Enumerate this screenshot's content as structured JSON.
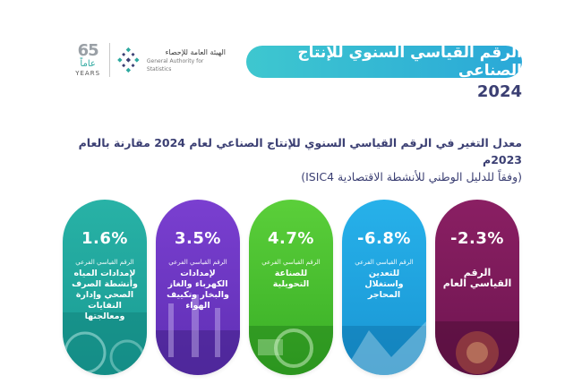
{
  "logo": {
    "anniversary_number": "65",
    "anniversary_arabic": "عاماً",
    "anniversary_years": "YEARS",
    "org_name_ar": "الهيئة العامة للإحصاء",
    "org_name_en": "General Authority for Statistics"
  },
  "header": {
    "title": "الرقم القياسي السنوي للإنتاج الصناعي",
    "year": "2024"
  },
  "subtitle": {
    "line1": "معدل التغير في الرقم القياسي السنوي للإنتاج الصناعي لعام 2024 مقارنة بالعام 2023م",
    "line2": "(وفقاً للدليل الوطني للأنشطة الاقتصادية ISIC4)"
  },
  "cards": [
    {
      "value": "1.6%",
      "small": "الرقم القياسي الفرعي",
      "big": "لإمدادات المياه وأنشطة الصرف الصحي وإدارة النفايات ومعالجتها",
      "color": "#1fa69c"
    },
    {
      "value": "3.5%",
      "small": "الرقم القياسي الفرعي",
      "big": "لإمدادات الكهرباء والغاز والبخار وتكييف الهواء",
      "color": "#6b36c3"
    },
    {
      "value": "4.7%",
      "small": "الرقم القياسي الفرعي",
      "big": "للصناعة التحويلية",
      "color": "#46bf2f"
    },
    {
      "value": "-6.8%",
      "small": "الرقم القياسي الفرعي",
      "big": "للتعدين واستغلال المحاجر",
      "color": "#21a3df"
    },
    {
      "value": "-2.3%",
      "small": "",
      "big": "الرقم القياسي العام",
      "color": "#7c1a59"
    }
  ]
}
